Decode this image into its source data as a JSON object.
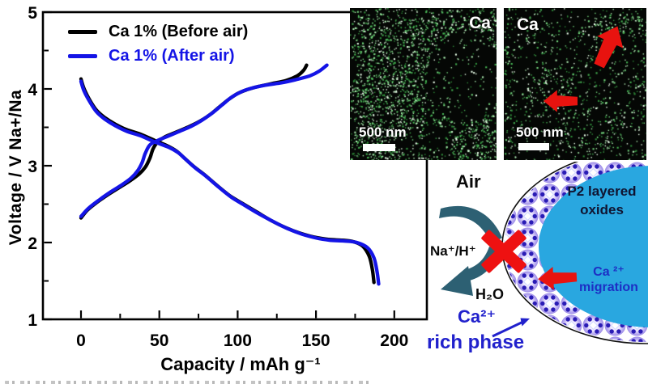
{
  "colors": {
    "black": "#000000",
    "blue_curve": "#1414e6",
    "red": "#e8130f",
    "red_x": "#ee1111",
    "teal_arrow": "#2d6073",
    "cyan_particle": "#29a7e0",
    "navy_text": "#101431",
    "blue_label": "#2121cc",
    "migration_text": "#1d2ec4",
    "shell_dot": "#2a1cb5",
    "eds_background": "#050705"
  },
  "chart": {
    "ylabel": "Voltage / V Na+/Na",
    "xlabel": "Capacity / mAh g⁻¹",
    "legend": [
      {
        "label": "Ca 1% (Before air)",
        "color": "#000000"
      },
      {
        "label": "Ca 1% (After air)",
        "color": "#1414e6"
      }
    ]
  },
  "chart_data": {
    "type": "line",
    "title": "",
    "xlabel": "Capacity / mAh g⁻¹",
    "ylabel": "Voltage / V Na+/Na",
    "xticks": [
      0,
      50,
      100,
      150,
      200
    ],
    "yticks": [
      1,
      2,
      3,
      4,
      5
    ],
    "x_minor_ticks": [
      25,
      75,
      125,
      175
    ],
    "y_minor_ticks": [
      1.5,
      2.5,
      3.5,
      4.5
    ],
    "xlim": [
      -24,
      221
    ],
    "ylim": [
      1,
      5
    ],
    "grid": false,
    "legend_position": "top-left-inside",
    "series": [
      {
        "name": "Ca 1% (Before air)",
        "branch": "charge",
        "color": "#000000",
        "points": [
          [
            0,
            2.32
          ],
          [
            4,
            2.42
          ],
          [
            10,
            2.52
          ],
          [
            17,
            2.62
          ],
          [
            24,
            2.71
          ],
          [
            31,
            2.8
          ],
          [
            37,
            2.89
          ],
          [
            41,
            2.98
          ],
          [
            44,
            3.1
          ],
          [
            46,
            3.22
          ],
          [
            49,
            3.31
          ],
          [
            54,
            3.38
          ],
          [
            60,
            3.43
          ],
          [
            68,
            3.5
          ],
          [
            75,
            3.57
          ],
          [
            82,
            3.66
          ],
          [
            88,
            3.76
          ],
          [
            94,
            3.86
          ],
          [
            100,
            3.94
          ],
          [
            106,
            3.99
          ],
          [
            113,
            4.03
          ],
          [
            122,
            4.07
          ],
          [
            131,
            4.11
          ],
          [
            138,
            4.17
          ],
          [
            142,
            4.24
          ],
          [
            144,
            4.31
          ]
        ]
      },
      {
        "name": "Ca 1% (Before air)",
        "branch": "discharge",
        "color": "#000000",
        "points": [
          [
            0,
            4.13
          ],
          [
            2,
            4.0
          ],
          [
            6,
            3.84
          ],
          [
            10,
            3.72
          ],
          [
            15,
            3.63
          ],
          [
            22,
            3.54
          ],
          [
            29,
            3.47
          ],
          [
            38,
            3.41
          ],
          [
            47,
            3.33
          ],
          [
            55,
            3.26
          ],
          [
            61,
            3.19
          ],
          [
            66,
            3.1
          ],
          [
            72,
            2.99
          ],
          [
            79,
            2.88
          ],
          [
            87,
            2.74
          ],
          [
            95,
            2.61
          ],
          [
            103,
            2.51
          ],
          [
            112,
            2.4
          ],
          [
            122,
            2.28
          ],
          [
            131,
            2.19
          ],
          [
            140,
            2.12
          ],
          [
            149,
            2.07
          ],
          [
            158,
            2.04
          ],
          [
            167,
            2.03
          ],
          [
            174,
            2.01
          ],
          [
            180,
            1.95
          ],
          [
            184,
            1.82
          ],
          [
            186,
            1.65
          ],
          [
            187,
            1.48
          ]
        ]
      },
      {
        "name": "Ca 1% (After air)",
        "branch": "charge",
        "color": "#1414e6",
        "points": [
          [
            0,
            2.34
          ],
          [
            5,
            2.45
          ],
          [
            12,
            2.56
          ],
          [
            19,
            2.66
          ],
          [
            26,
            2.75
          ],
          [
            32,
            2.84
          ],
          [
            36,
            2.93
          ],
          [
            39,
            3.04
          ],
          [
            41,
            3.16
          ],
          [
            44,
            3.27
          ],
          [
            49,
            3.33
          ],
          [
            55,
            3.38
          ],
          [
            62,
            3.44
          ],
          [
            70,
            3.51
          ],
          [
            77,
            3.59
          ],
          [
            84,
            3.69
          ],
          [
            90,
            3.79
          ],
          [
            96,
            3.89
          ],
          [
            102,
            3.96
          ],
          [
            109,
            4.01
          ],
          [
            118,
            4.05
          ],
          [
            128,
            4.08
          ],
          [
            137,
            4.12
          ],
          [
            146,
            4.17
          ],
          [
            152,
            4.23
          ],
          [
            157,
            4.31
          ]
        ]
      },
      {
        "name": "Ca 1% (After air)",
        "branch": "discharge",
        "color": "#1414e6",
        "points": [
          [
            0,
            4.1
          ],
          [
            2,
            3.97
          ],
          [
            6,
            3.82
          ],
          [
            10,
            3.7
          ],
          [
            15,
            3.61
          ],
          [
            22,
            3.52
          ],
          [
            29,
            3.45
          ],
          [
            38,
            3.39
          ],
          [
            47,
            3.31
          ],
          [
            56,
            3.24
          ],
          [
            62,
            3.17
          ],
          [
            67,
            3.08
          ],
          [
            73,
            2.97
          ],
          [
            80,
            2.86
          ],
          [
            88,
            2.72
          ],
          [
            96,
            2.59
          ],
          [
            104,
            2.49
          ],
          [
            113,
            2.38
          ],
          [
            123,
            2.27
          ],
          [
            132,
            2.18
          ],
          [
            141,
            2.11
          ],
          [
            150,
            2.06
          ],
          [
            159,
            2.03
          ],
          [
            168,
            2.02
          ],
          [
            176,
            2.0
          ],
          [
            183,
            1.93
          ],
          [
            187,
            1.8
          ],
          [
            189,
            1.62
          ],
          [
            190,
            1.46
          ]
        ]
      }
    ]
  },
  "eds": {
    "dot_colors": [
      "#2f8f3a",
      "#46b554",
      "#74d87e",
      "#b2f2b6",
      "#eaffea"
    ],
    "panels": [
      {
        "label": "Ca",
        "label_position": "top-right",
        "scale_text": "500 nm",
        "arrows": []
      },
      {
        "label": "Ca",
        "label_position": "top-left",
        "scale_text": "500 nm",
        "arrows": [
          "up-right",
          "left"
        ]
      }
    ]
  },
  "schematic": {
    "air": "Air",
    "na_h": "Na⁺/H⁺",
    "h2o": "H₂O",
    "ca_ion": "Ca²⁺",
    "rich_phase": "rich phase",
    "p2_line1": "P2 layered",
    "p2_line2": "oxides",
    "migration_line1": "Ca ²⁺",
    "migration_line2": "migration"
  }
}
